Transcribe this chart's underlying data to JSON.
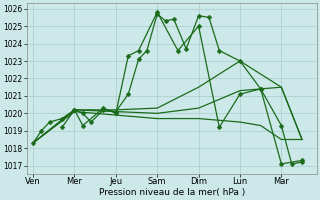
{
  "background_color": "#cce8e8",
  "grid_color": "#aacccc",
  "line_color": "#1a6b1a",
  "marker_color": "#1a6b1a",
  "xlabel": "Pression niveau de la mer( hPa )",
  "ylim": [
    1016.5,
    1026.3
  ],
  "yticks": [
    1017,
    1018,
    1019,
    1020,
    1021,
    1022,
    1023,
    1024,
    1025,
    1026
  ],
  "xtick_labels": [
    "Ven",
    "Mer",
    "Jeu",
    "Sam",
    "Dim",
    "Lun",
    "Mar"
  ],
  "xtick_pos": [
    0,
    1,
    2,
    3,
    4,
    5,
    6
  ],
  "xlim": [
    -0.15,
    6.85
  ],
  "series": [
    {
      "x": [
        0.0,
        0.2,
        0.4,
        0.7,
        1.0,
        1.2,
        1.4,
        1.7,
        2.0,
        2.3,
        2.55,
        2.75,
        3.0,
        3.2,
        3.4,
        3.7,
        4.0,
        4.25,
        4.5,
        5.0,
        5.5,
        6.0,
        6.25,
        6.5
      ],
      "y": [
        1018.3,
        1019.0,
        1019.5,
        1019.7,
        1020.2,
        1020.0,
        1019.5,
        1020.2,
        1020.1,
        1021.1,
        1023.1,
        1023.6,
        1025.7,
        1025.3,
        1025.4,
        1023.7,
        1025.6,
        1025.5,
        1023.6,
        1023.0,
        1021.4,
        1019.3,
        1017.1,
        1017.2
      ],
      "has_markers": true,
      "marker_size": 2.5,
      "linewidth": 0.9
    },
    {
      "x": [
        0.7,
        1.0,
        1.2,
        1.7,
        2.0,
        2.3,
        2.55,
        3.0,
        3.5,
        4.0,
        4.5,
        5.0,
        5.5,
        6.0,
        6.5
      ],
      "y": [
        1019.2,
        1020.2,
        1019.3,
        1020.3,
        1020.0,
        1023.3,
        1023.6,
        1025.8,
        1023.6,
        1025.0,
        1019.2,
        1021.1,
        1021.4,
        1017.1,
        1017.3
      ],
      "has_markers": true,
      "marker_size": 2.5,
      "linewidth": 0.9
    },
    {
      "x": [
        0.0,
        1.0,
        2.0,
        3.0,
        4.0,
        5.0,
        6.0,
        6.5
      ],
      "y": [
        1018.3,
        1020.2,
        1020.2,
        1020.3,
        1021.5,
        1023.0,
        1021.5,
        1018.5
      ],
      "has_markers": false,
      "linewidth": 0.9
    },
    {
      "x": [
        0.0,
        1.0,
        2.0,
        3.0,
        4.0,
        5.0,
        6.0,
        6.5
      ],
      "y": [
        1018.3,
        1020.2,
        1020.1,
        1020.0,
        1020.3,
        1021.3,
        1021.5,
        1018.5
      ],
      "has_markers": false,
      "linewidth": 0.9
    },
    {
      "x": [
        0.0,
        1.0,
        2.0,
        3.0,
        4.0,
        5.0,
        5.5,
        6.0,
        6.5
      ],
      "y": [
        1018.3,
        1020.1,
        1019.9,
        1019.7,
        1019.7,
        1019.5,
        1019.3,
        1018.5,
        1018.5
      ],
      "has_markers": false,
      "linewidth": 0.9
    }
  ]
}
